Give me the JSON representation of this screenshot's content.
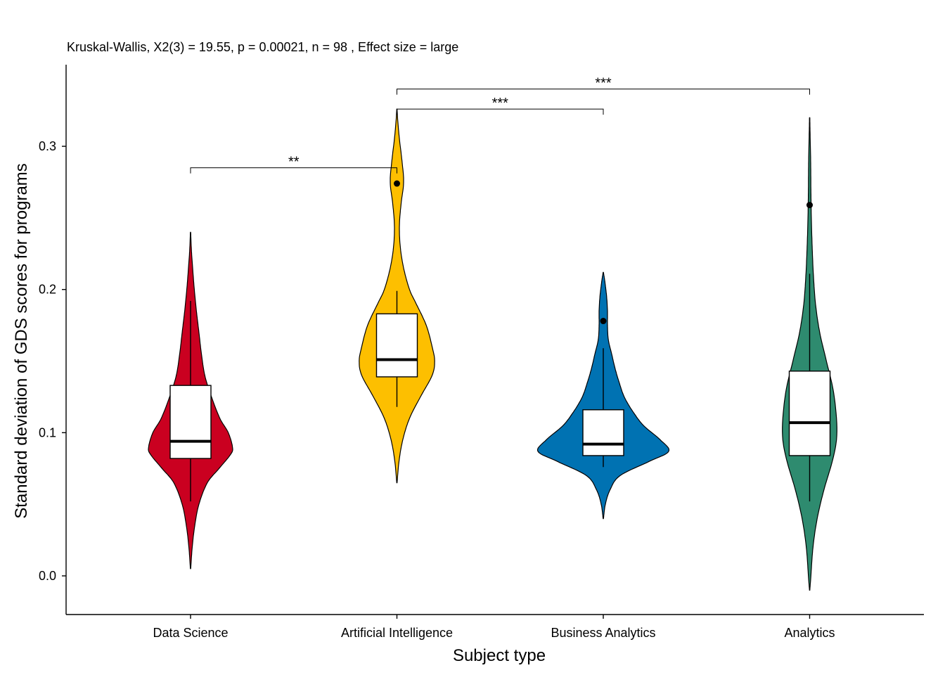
{
  "chart_data": {
    "type": "violin",
    "subtitle": "Kruskal-Wallis, X2(3) = 19.55, p = 0.00021, n = 98 , Effect size = large",
    "xlabel": "Subject type",
    "ylabel": "Standard deviation of GDS scores for programs",
    "ylim": [
      -0.027,
      0.357
    ],
    "yticks": [
      0.0,
      0.1,
      0.2,
      0.3
    ],
    "ytick_labels": [
      "0.0",
      "0.1",
      "0.2",
      "0.3"
    ],
    "grid": false,
    "legend": "none",
    "groups": [
      {
        "label": "Data Science",
        "color": "#CA0020",
        "box": {
          "q1": 0.082,
          "median": 0.094,
          "q3": 0.133,
          "whisker_low": 0.052,
          "whisker_high": 0.192
        },
        "outliers": [],
        "density": [
          [
            0.005,
            0.2
          ],
          [
            0.02,
            2
          ],
          [
            0.035,
            5
          ],
          [
            0.05,
            10
          ],
          [
            0.065,
            20
          ],
          [
            0.075,
            34
          ],
          [
            0.085,
            48
          ],
          [
            0.09,
            50
          ],
          [
            0.1,
            45
          ],
          [
            0.11,
            35
          ],
          [
            0.125,
            25
          ],
          [
            0.14,
            17
          ],
          [
            0.155,
            13
          ],
          [
            0.17,
            10
          ],
          [
            0.185,
            7
          ],
          [
            0.2,
            4.5
          ],
          [
            0.215,
            2.5
          ],
          [
            0.228,
            1
          ],
          [
            0.24,
            0.2
          ]
        ]
      },
      {
        "label": "Artificial Intelligence",
        "color": "#FDBF00",
        "box": {
          "q1": 0.139,
          "median": 0.151,
          "q3": 0.183,
          "whisker_low": 0.118,
          "whisker_high": 0.199
        },
        "outliers": [
          0.274
        ],
        "density": [
          [
            0.065,
            0.2
          ],
          [
            0.08,
            2.5
          ],
          [
            0.095,
            7
          ],
          [
            0.11,
            15
          ],
          [
            0.125,
            28
          ],
          [
            0.14,
            42
          ],
          [
            0.15,
            45
          ],
          [
            0.16,
            42
          ],
          [
            0.175,
            35
          ],
          [
            0.19,
            23
          ],
          [
            0.2,
            15
          ],
          [
            0.215,
            8
          ],
          [
            0.23,
            4
          ],
          [
            0.245,
            3
          ],
          [
            0.26,
            5
          ],
          [
            0.275,
            8
          ],
          [
            0.29,
            6
          ],
          [
            0.305,
            3
          ],
          [
            0.318,
            1
          ],
          [
            0.326,
            0.2
          ]
        ]
      },
      {
        "label": "Business Analytics",
        "color": "#0072B2",
        "box": {
          "q1": 0.084,
          "median": 0.092,
          "q3": 0.116,
          "whisker_low": 0.076,
          "whisker_high": 0.159
        },
        "outliers": [
          0.178
        ],
        "density": [
          [
            0.04,
            0.2
          ],
          [
            0.05,
            2.5
          ],
          [
            0.06,
            8
          ],
          [
            0.07,
            20
          ],
          [
            0.08,
            55
          ],
          [
            0.087,
            78
          ],
          [
            0.095,
            68
          ],
          [
            0.105,
            48
          ],
          [
            0.115,
            35
          ],
          [
            0.125,
            25
          ],
          [
            0.135,
            19
          ],
          [
            0.145,
            14
          ],
          [
            0.155,
            10
          ],
          [
            0.165,
            6
          ],
          [
            0.175,
            5
          ],
          [
            0.185,
            5
          ],
          [
            0.195,
            4
          ],
          [
            0.205,
            2
          ],
          [
            0.212,
            0.2
          ]
        ]
      },
      {
        "label": "Analytics",
        "color": "#2E8B6F",
        "box": {
          "q1": 0.084,
          "median": 0.107,
          "q3": 0.143,
          "whisker_low": 0.052,
          "whisker_high": 0.211
        },
        "outliers": [
          0.259
        ],
        "density": [
          [
            -0.01,
            0.2
          ],
          [
            0.0,
            1.5
          ],
          [
            0.02,
            4
          ],
          [
            0.04,
            9
          ],
          [
            0.06,
            17
          ],
          [
            0.08,
            27
          ],
          [
            0.095,
            32
          ],
          [
            0.11,
            32
          ],
          [
            0.13,
            28
          ],
          [
            0.15,
            20
          ],
          [
            0.17,
            12
          ],
          [
            0.19,
            7
          ],
          [
            0.21,
            4.5
          ],
          [
            0.23,
            3
          ],
          [
            0.25,
            2
          ],
          [
            0.27,
            1.5
          ],
          [
            0.29,
            1.2
          ],
          [
            0.31,
            0.5
          ],
          [
            0.32,
            0.2
          ]
        ]
      }
    ],
    "comparisons": [
      {
        "from": "Data Science",
        "to": "Artificial Intelligence",
        "label": "**",
        "y": 0.285
      },
      {
        "from": "Artificial Intelligence",
        "to": "Business Analytics",
        "label": "***",
        "y": 0.326
      },
      {
        "from": "Artificial Intelligence",
        "to": "Analytics",
        "label": "***",
        "y": 0.34
      }
    ]
  }
}
